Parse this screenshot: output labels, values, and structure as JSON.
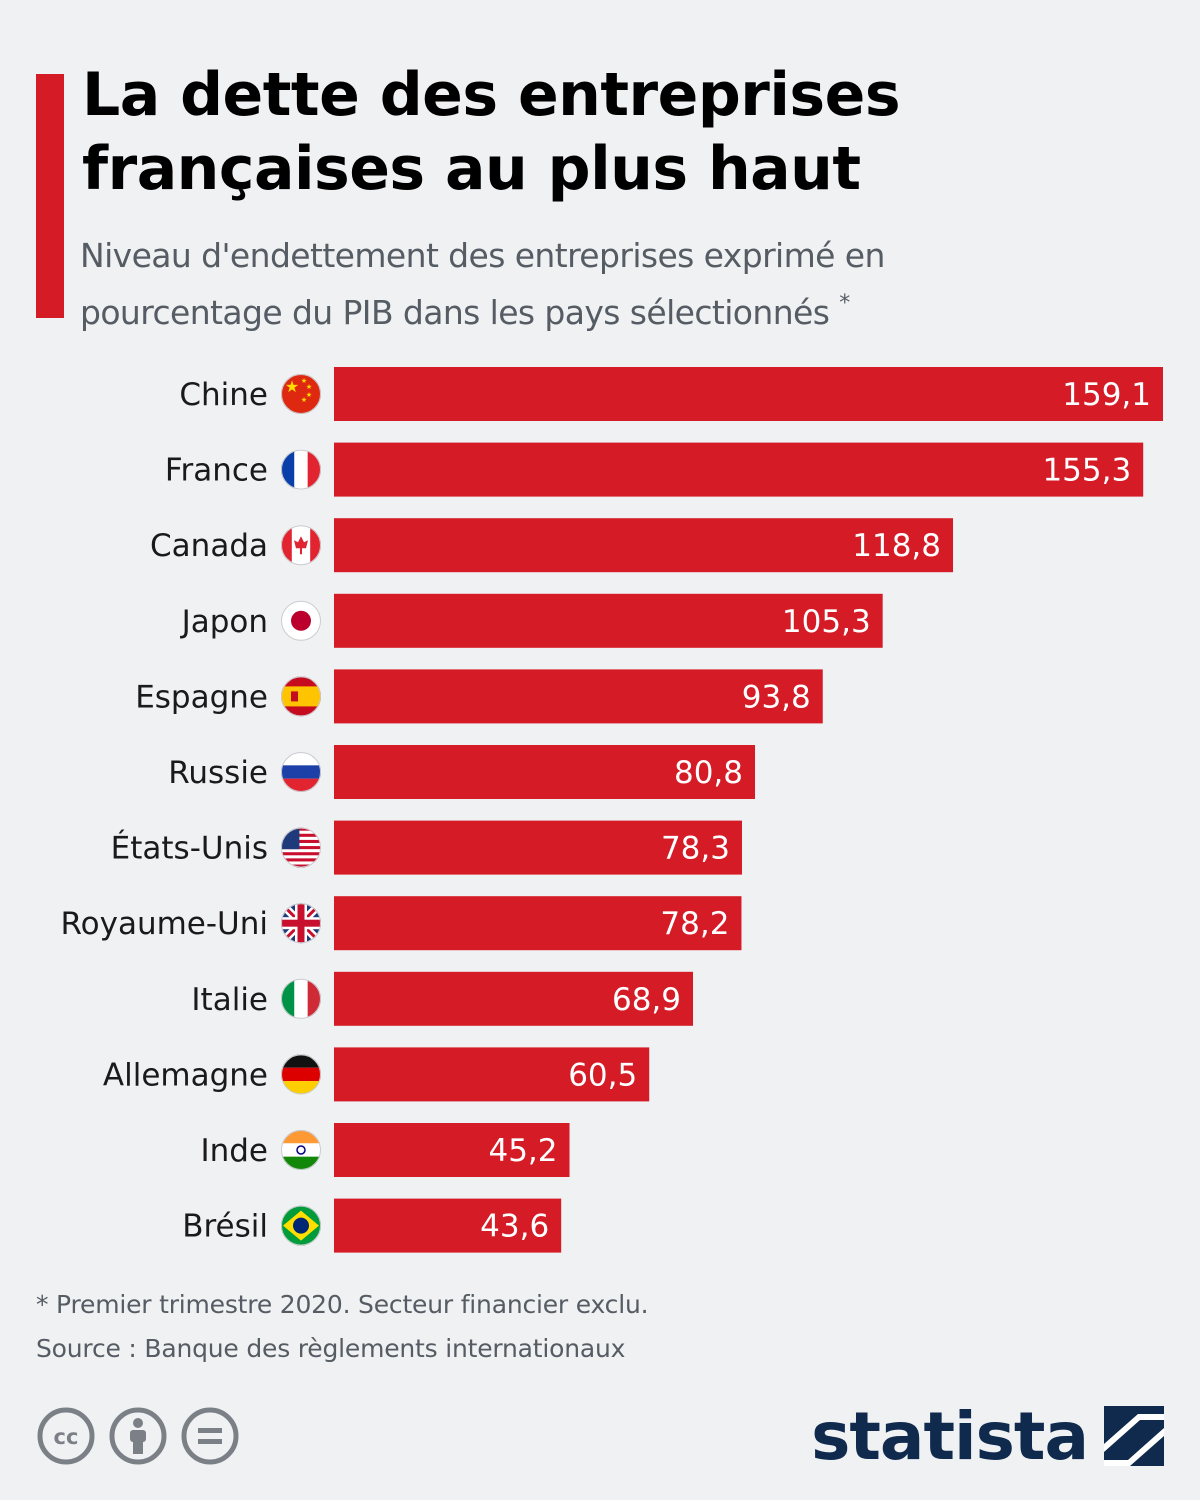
{
  "header": {
    "title_line1": "La dette des entreprises",
    "title_line2": "françaises au plus haut",
    "subtitle_line1": "Niveau d'endettement des entreprises exprimé en",
    "subtitle_line2": "pourcentage du PIB dans les pays sélectionnés",
    "subtitle_marker": "*"
  },
  "colors": {
    "bar": "#d51b26",
    "accent": "#d51b26",
    "background": "#f0f1f3",
    "brand": "#0f2a4d"
  },
  "chart_data": {
    "type": "bar",
    "orientation": "horizontal",
    "categories": [
      "Chine",
      "France",
      "Canada",
      "Japon",
      "Espagne",
      "Russie",
      "États-Unis",
      "Royaume-Uni",
      "Italie",
      "Allemagne",
      "Inde",
      "Brésil"
    ],
    "values": [
      159.1,
      155.3,
      118.8,
      105.3,
      93.8,
      80.8,
      78.3,
      78.2,
      68.9,
      60.5,
      45.2,
      43.6
    ],
    "value_labels": [
      "159,1",
      "155,3",
      "118,8",
      "105,3",
      "93,8",
      "80,8",
      "78,3",
      "78,2",
      "68,9",
      "60,5",
      "45,2",
      "43,6"
    ],
    "flags": [
      "china-flag-icon",
      "france-flag-icon",
      "canada-flag-icon",
      "japan-flag-icon",
      "spain-flag-icon",
      "russia-flag-icon",
      "usa-flag-icon",
      "uk-flag-icon",
      "italy-flag-icon",
      "germany-flag-icon",
      "india-flag-icon",
      "brazil-flag-icon"
    ],
    "xlim": [
      0,
      159.1
    ],
    "grid": false,
    "legend": "none"
  },
  "footer": {
    "footnote": "* Premier trimestre 2020. Secteur financier exclu.",
    "source": "Source : Banque des règlements internationaux",
    "license_icons": [
      "cc-icon",
      "by-attribution-icon",
      "no-derivatives-icon"
    ],
    "brand": "statista"
  }
}
